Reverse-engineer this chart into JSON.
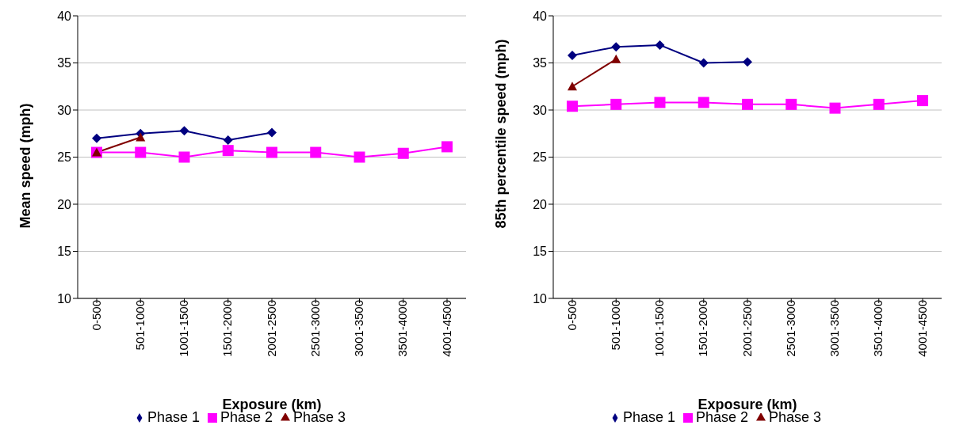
{
  "chart_data": [
    {
      "type": "line",
      "xlabel": "Exposure (km)",
      "ylabel": "Mean speed (mph)",
      "categories": [
        "0-500",
        "501-1000",
        "1001-1500",
        "1501-2000",
        "2001-2500",
        "2501-3000",
        "3001-3500",
        "3501-4000",
        "4001-4500"
      ],
      "ylim": [
        10,
        40
      ],
      "yticks": [
        10,
        15,
        20,
        25,
        30,
        35,
        40
      ],
      "grid": "y",
      "legend": "bottom",
      "series": [
        {
          "name": "Phase 1",
          "color": "#000080",
          "marker": "diamond",
          "values": [
            27.0,
            27.5,
            27.8,
            26.8,
            27.6,
            null,
            null,
            null,
            null
          ]
        },
        {
          "name": "Phase 2",
          "color": "#ff00ff",
          "marker": "square",
          "values": [
            25.5,
            25.5,
            25.0,
            25.7,
            25.5,
            25.5,
            25.0,
            25.4,
            26.1
          ]
        },
        {
          "name": "Phase 3",
          "color": "#800000",
          "marker": "triangle",
          "values": [
            25.5,
            27.1,
            null,
            null,
            null,
            null,
            null,
            null,
            null
          ]
        }
      ]
    },
    {
      "type": "line",
      "xlabel": "Exposure (km)",
      "ylabel": "85th percentile speed (mph)",
      "categories": [
        "0-500",
        "501-1000",
        "1001-1500",
        "1501-2000",
        "2001-2500",
        "2501-3000",
        "3001-3500",
        "3501-4000",
        "4001-4500"
      ],
      "ylim": [
        10,
        40
      ],
      "yticks": [
        10,
        15,
        20,
        25,
        30,
        35,
        40
      ],
      "grid": "y",
      "legend": "bottom",
      "series": [
        {
          "name": "Phase 1",
          "color": "#000080",
          "marker": "diamond",
          "values": [
            35.8,
            36.7,
            36.9,
            35.0,
            35.1,
            null,
            null,
            null,
            null
          ]
        },
        {
          "name": "Phase 2",
          "color": "#ff00ff",
          "marker": "square",
          "values": [
            30.4,
            30.6,
            30.8,
            30.8,
            30.6,
            30.6,
            30.2,
            30.6,
            31.0
          ]
        },
        {
          "name": "Phase 3",
          "color": "#800000",
          "marker": "triangle",
          "values": [
            32.5,
            35.4,
            null,
            null,
            null,
            null,
            null,
            null,
            null
          ]
        }
      ]
    }
  ]
}
